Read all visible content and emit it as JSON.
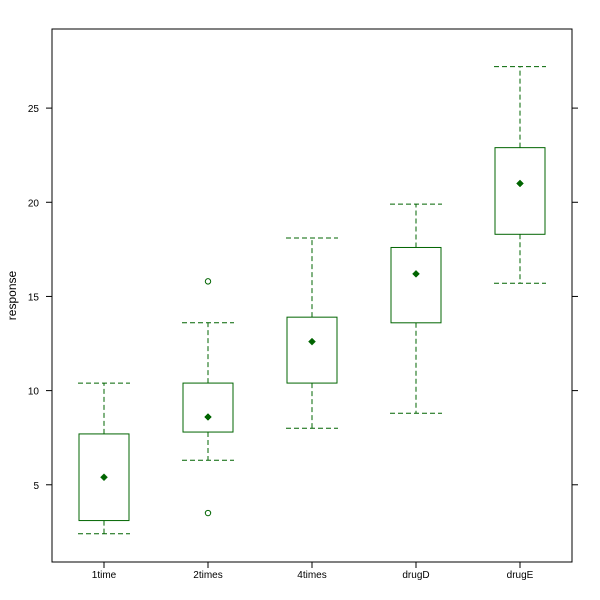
{
  "chart_data": {
    "type": "box",
    "ylabel": "response",
    "xlabel": "",
    "ylim": [
      0.9,
      29.2
    ],
    "yticks": [
      5,
      10,
      15,
      20,
      25
    ],
    "colors": {
      "stroke": "#006400",
      "axis": "#000000"
    },
    "categories": [
      "1time",
      "2times",
      "4times",
      "drugD",
      "drugE"
    ],
    "boxes": [
      {
        "category": "1time",
        "whisker_low": 2.4,
        "q1": 3.1,
        "median": 5.4,
        "q3": 7.7,
        "whisker_high": 10.4,
        "outliers": []
      },
      {
        "category": "2times",
        "whisker_low": 6.3,
        "q1": 7.8,
        "median": 8.6,
        "q3": 10.4,
        "whisker_high": 13.6,
        "outliers": [
          15.8,
          3.5
        ]
      },
      {
        "category": "4times",
        "whisker_low": 8.0,
        "q1": 10.4,
        "median": 12.6,
        "q3": 13.9,
        "whisker_high": 18.1,
        "outliers": []
      },
      {
        "category": "drugD",
        "whisker_low": 8.8,
        "q1": 13.6,
        "median": 16.2,
        "q3": 17.6,
        "whisker_high": 19.9,
        "outliers": []
      },
      {
        "category": "drugE",
        "whisker_low": 15.7,
        "q1": 18.3,
        "median": 21.0,
        "q3": 22.9,
        "whisker_high": 27.2,
        "outliers": []
      }
    ]
  }
}
